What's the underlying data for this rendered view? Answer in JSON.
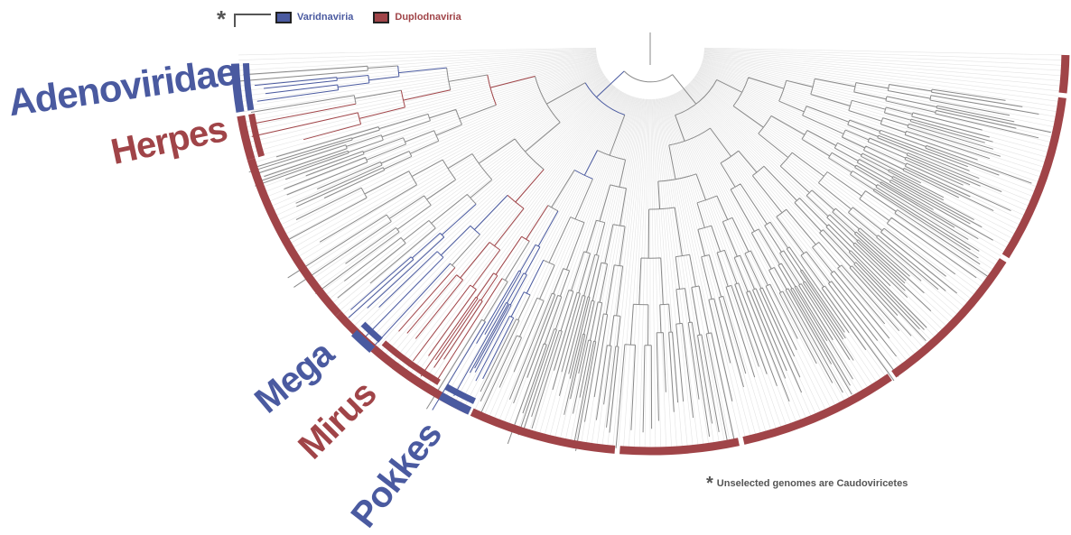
{
  "legend": {
    "items": [
      {
        "label": "Varidnaviria",
        "color": "#4a5aa0"
      },
      {
        "label": "Duplodnaviria",
        "color": "#a04448"
      }
    ],
    "marker": "*"
  },
  "groups": [
    {
      "label": "Adenoviridae",
      "realm": "Varidnaviria",
      "color": "#4a5aa0"
    },
    {
      "label": "Herpes",
      "realm": "Duplodnaviria",
      "color": "#a04448"
    },
    {
      "label": "Mega",
      "realm": "Varidnaviria",
      "color": "#4a5aa0"
    },
    {
      "label": "Mirus",
      "realm": "Duplodnaviria",
      "color": "#a04448"
    },
    {
      "label": "Pokkes",
      "realm": "Varidnaviria",
      "color": "#4a5aa0"
    }
  ],
  "footnote": {
    "marker": "*",
    "text": "Unselected genomes are Caudoviricetes"
  },
  "colors": {
    "varidnaviria": "#4a5aa0",
    "duplodnaviria": "#a04448",
    "unselected": "#8a8a8a",
    "guide": "#e4e4e4"
  }
}
